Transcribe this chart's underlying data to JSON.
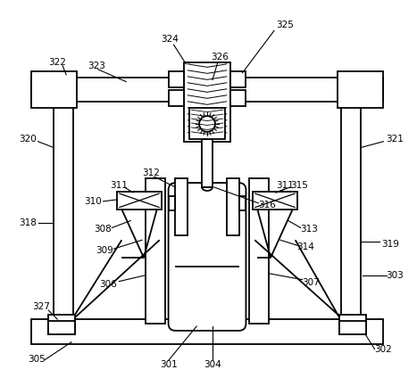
{
  "bg_color": "#ffffff",
  "line_color": "#000000",
  "lw": 1.3,
  "fig_width": 4.67,
  "fig_height": 4.24
}
